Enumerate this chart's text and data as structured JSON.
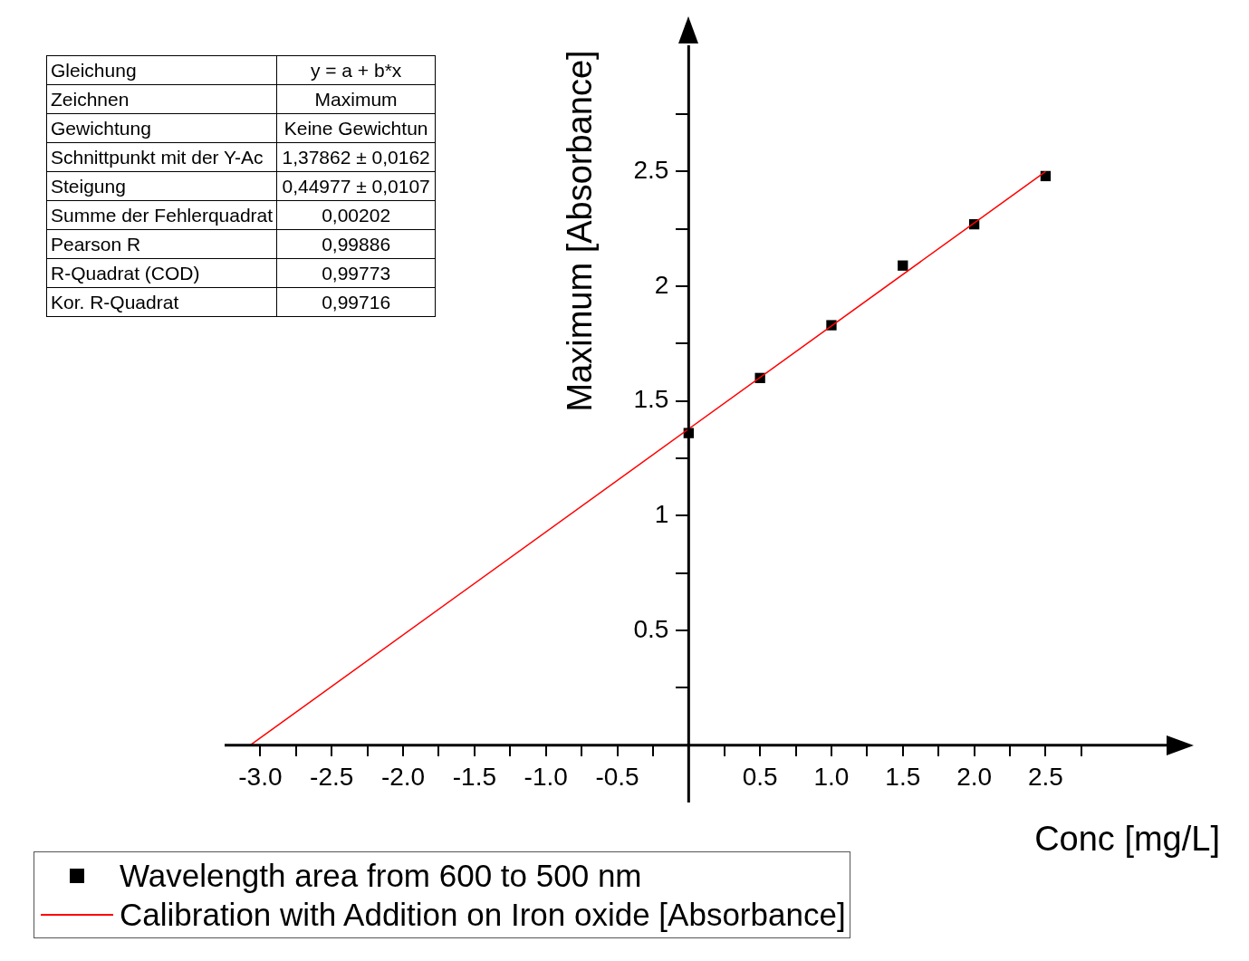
{
  "chart_data": {
    "type": "scatter",
    "xlabel": "Conc [mg/L]",
    "ylabel": "Maximum [Absorbance]",
    "xlim": [
      -3.25,
      3.36
    ],
    "ylim": [
      -0.25,
      3.05
    ],
    "xticks": [
      {
        "value": -3,
        "label": "-3.0"
      },
      {
        "value": -2.75,
        "label": null
      },
      {
        "value": -2.5,
        "label": "-2.5"
      },
      {
        "value": -2.25,
        "label": null
      },
      {
        "value": -2,
        "label": "-2.0"
      },
      {
        "value": -1.75,
        "label": null
      },
      {
        "value": -1.5,
        "label": "-1.5"
      },
      {
        "value": -1.25,
        "label": null
      },
      {
        "value": -1,
        "label": "-1.0"
      },
      {
        "value": -0.75,
        "label": null
      },
      {
        "value": -0.5,
        "label": "-0.5"
      },
      {
        "value": -0.25,
        "label": null
      },
      {
        "value": 0.25,
        "label": null
      },
      {
        "value": 0.5,
        "label": "0.5"
      },
      {
        "value": 0.75,
        "label": null
      },
      {
        "value": 1,
        "label": "1.0"
      },
      {
        "value": 1.25,
        "label": null
      },
      {
        "value": 1.5,
        "label": "1.5"
      },
      {
        "value": 1.75,
        "label": null
      },
      {
        "value": 2,
        "label": "2.0"
      },
      {
        "value": 2.25,
        "label": null
      },
      {
        "value": 2.5,
        "label": "2.5"
      },
      {
        "value": 2.75,
        "label": null
      }
    ],
    "yticks": [
      {
        "value": 0.25,
        "label": null
      },
      0.5,
      {
        "value": 0.75,
        "label": null
      },
      1,
      {
        "value": 1.25,
        "label": null
      },
      1.5,
      {
        "value": 1.75,
        "label": null
      },
      2,
      {
        "value": 2.25,
        "label": null
      },
      2.5,
      {
        "value": 2.75,
        "label": null
      }
    ],
    "grid": false,
    "legend": "bottom left",
    "series": [
      {
        "name": "Wavelength area from 600 to 500 nm",
        "type": "scatter",
        "marker": "square",
        "color": "#000000",
        "x": [
          0,
          0.5,
          1,
          1.5,
          2,
          2.5
        ],
        "values": [
          1.36,
          1.6,
          1.83,
          2.09,
          2.27,
          2.48
        ]
      },
      {
        "name": "Calibration with Addition on Iron oxide [Absorbance]",
        "type": "line",
        "marker": "none",
        "line_style": "solid",
        "color": "#ff0000",
        "x": [
          -3.07,
          2.5
        ],
        "values": [
          0,
          2.5
        ]
      }
    ],
    "annotations": [
      "Gleichung",
      "y = a + b*x",
      "Zeichnen",
      "Maximum",
      "Gewichtung",
      "Keine Gewichtun",
      "Schnittpunkt mit der Y-Ac",
      "1,37862 ± 0,0162",
      "Steigung",
      "0,44977 ± 0,0107",
      "Summe der Fehlerquadrat",
      "0,00202",
      "Pearson R",
      "0,99886",
      "R-Quadrat (COD)",
      "0,99773",
      "Kor. R-Quadrat",
      "0,99716"
    ]
  }
}
